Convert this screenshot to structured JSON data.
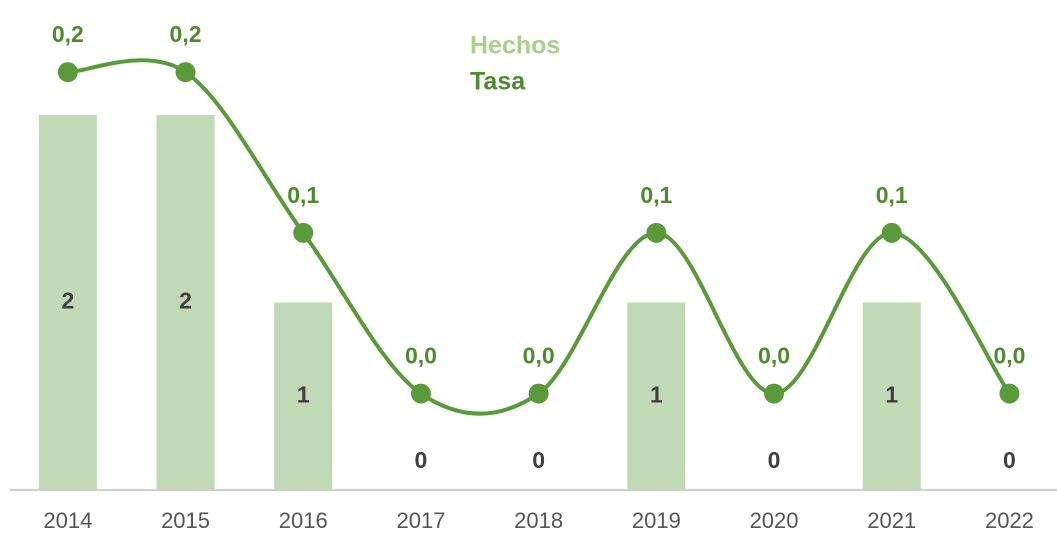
{
  "chart_data": {
    "type": "bar_line",
    "categories": [
      "2014",
      "2015",
      "2016",
      "2017",
      "2018",
      "2019",
      "2020",
      "2021",
      "2022"
    ],
    "series": [
      {
        "name": "Hechos",
        "type": "bar",
        "color": "#c1d9b5",
        "values": [
          2,
          2,
          1,
          0,
          0,
          1,
          0,
          1,
          0
        ]
      },
      {
        "name": "Tasa",
        "type": "line",
        "axis": "y2",
        "color": "#5a9a3a",
        "values": [
          0.2,
          0.2,
          0.1,
          0,
          0,
          0.1,
          0,
          0.1,
          0
        ],
        "value_labels": [
          "0,2",
          "0,2",
          "0,1",
          "0,0",
          "0,0",
          "0,1",
          "0,0",
          "0,1",
          "0,0"
        ]
      }
    ],
    "ylim": [
      0,
      2.4
    ],
    "y2lim": [
      -0.06,
      0.22
    ]
  }
}
